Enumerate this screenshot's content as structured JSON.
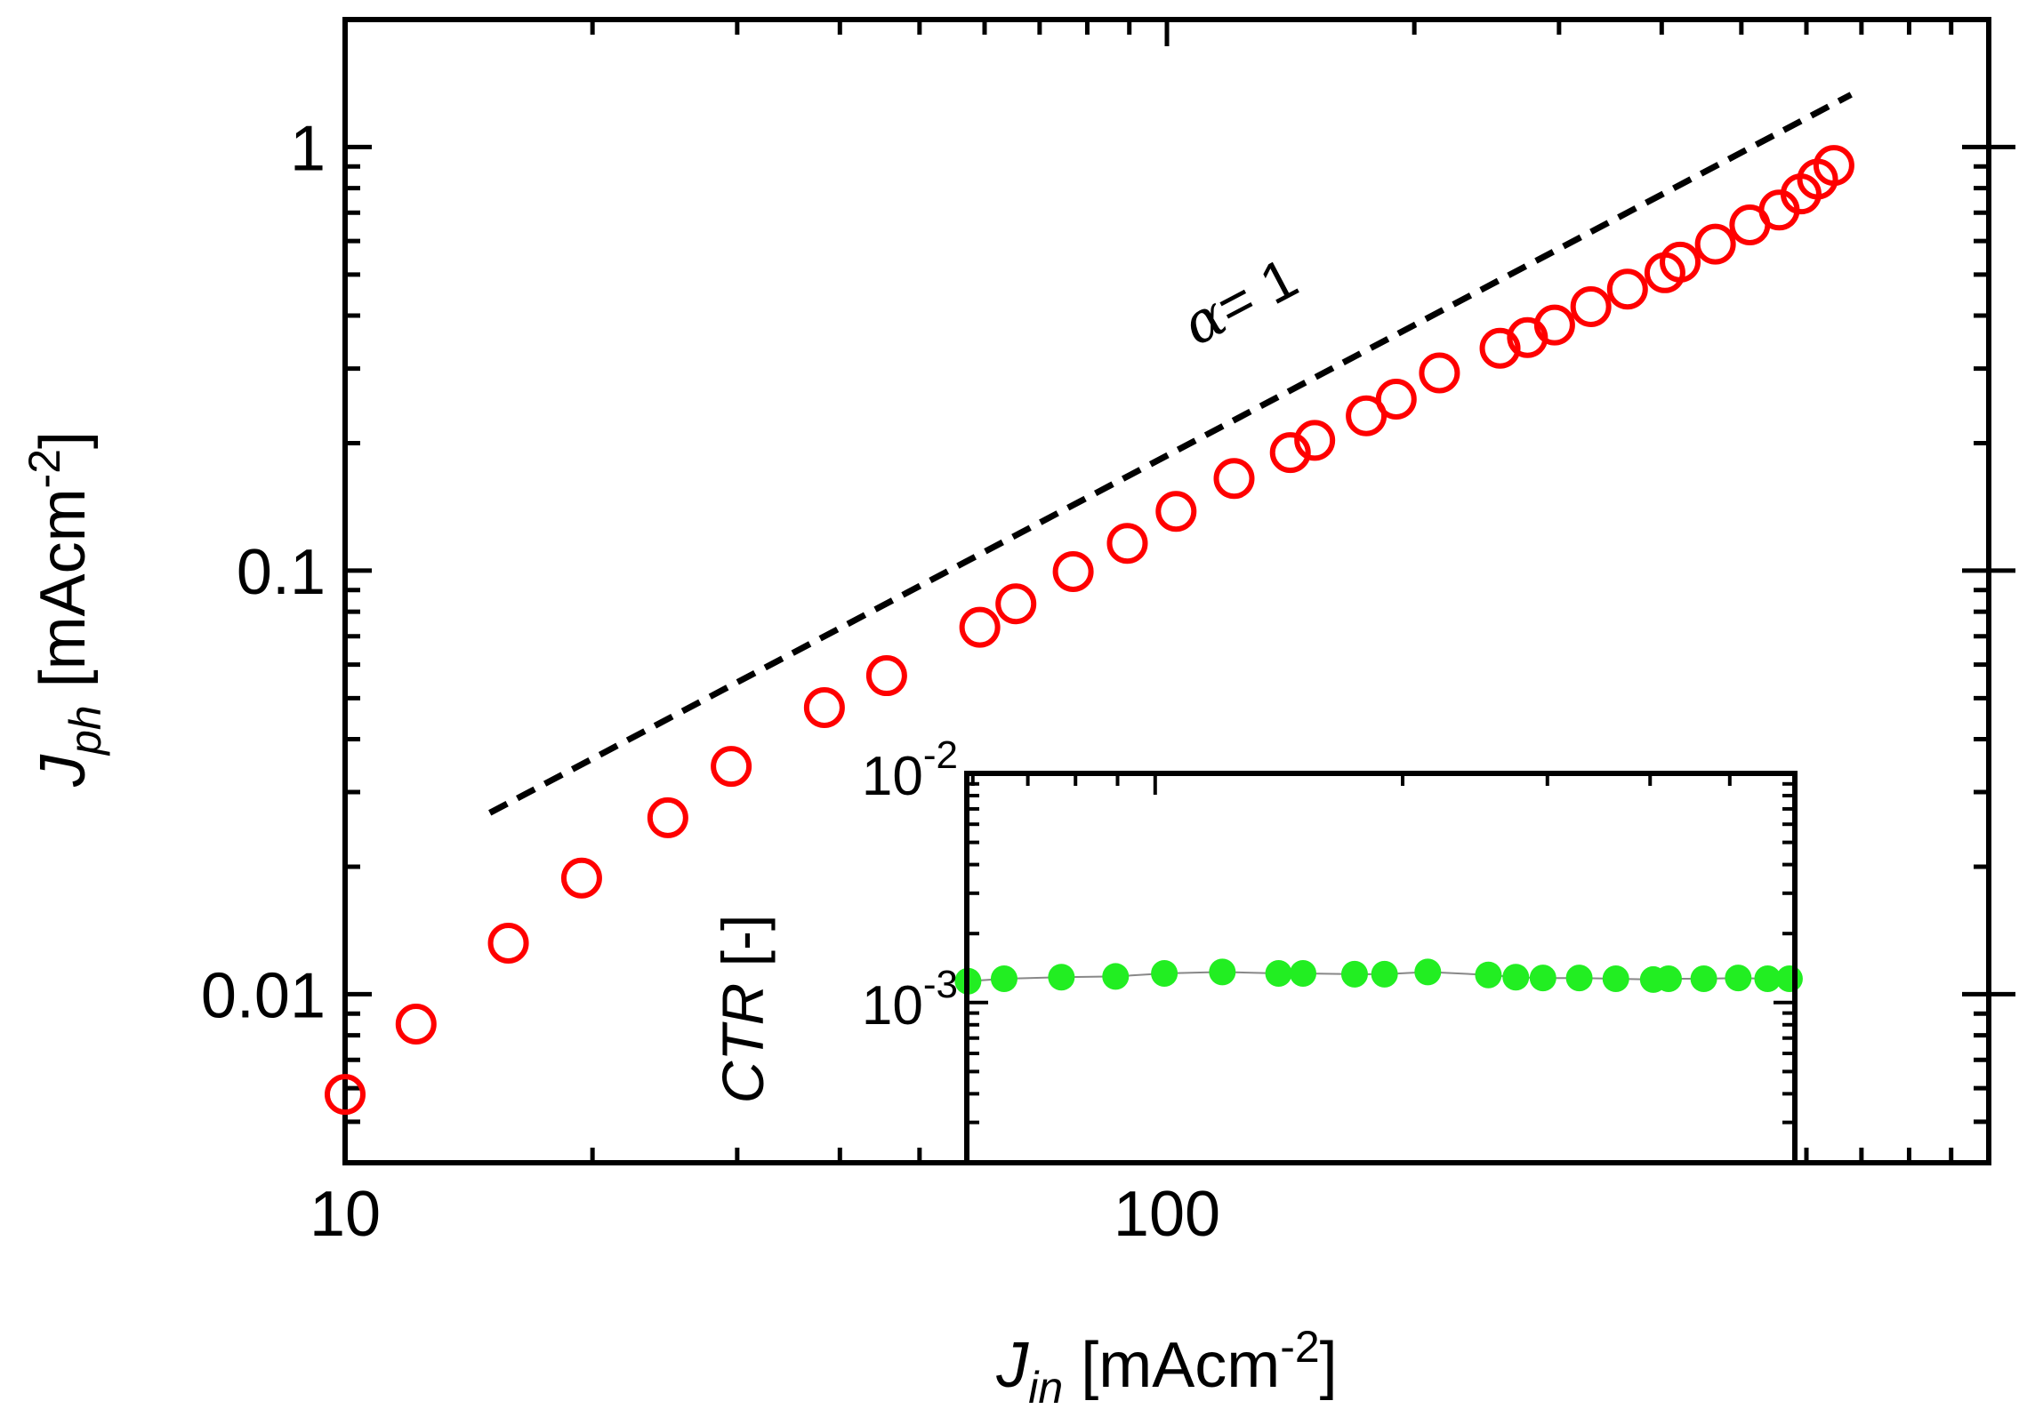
{
  "chart_data": [
    {
      "type": "scatter",
      "role": "main",
      "xscale": "log",
      "yscale": "log",
      "xlim": [
        10,
        1000
      ],
      "ylim": [
        0.004,
        2
      ],
      "x_ticks": [
        {
          "value": 10,
          "label": "10"
        },
        {
          "value": 100,
          "label": "100"
        }
      ],
      "y_ticks": [
        {
          "value": 0.01,
          "label": "0.01"
        },
        {
          "value": 0.1,
          "label": "0.1"
        },
        {
          "value": 1,
          "label": "1"
        }
      ],
      "xlabel": {
        "main": "J",
        "sub": "in",
        "unit": " [mAcm",
        "sup": "-2",
        "end": "]"
      },
      "ylabel": {
        "main": "J",
        "sub": "ph",
        "unit": " [mAcm",
        "sup": "-2",
        "end": "]"
      },
      "series": [
        {
          "name": "Jph",
          "marker": "open-circle",
          "color": "#ff0000",
          "x": [
            10,
            12.2,
            15.8,
            19.4,
            24.7,
            29.5,
            38.3,
            45.6,
            59.2,
            65.5,
            76.9,
            89.5,
            102.6,
            120.7,
            141.3,
            151.3,
            174.8,
            190.1,
            214.6,
            254.3,
            274.6,
            296.3,
            328,
            363.4,
            403.6,
            421.2,
            464.9,
            512,
            556,
            591,
            619,
            648
          ],
          "y": [
            0.0058,
            0.0085,
            0.0132,
            0.0188,
            0.0261,
            0.0345,
            0.0475,
            0.0565,
            0.0735,
            0.0835,
            0.0995,
            0.116,
            0.138,
            0.165,
            0.19,
            0.203,
            0.232,
            0.254,
            0.293,
            0.335,
            0.355,
            0.38,
            0.42,
            0.462,
            0.505,
            0.535,
            0.59,
            0.655,
            0.71,
            0.775,
            0.84,
            0.905
          ]
        }
      ],
      "reference_line": {
        "label_symbol": "α",
        "label_rest": "= 1",
        "style": "dashed",
        "color": "#000000",
        "x": [
          15,
          680
        ],
        "y": [
          0.0268,
          1.33
        ]
      }
    },
    {
      "type": "scatter",
      "role": "inset",
      "xscale": "log",
      "yscale": "log",
      "xlim": [
        59,
        600
      ],
      "ylim": [
        0.0002,
        0.01
      ],
      "y_ticks": [
        {
          "value": 0.01,
          "base": "10",
          "exp": "-2"
        },
        {
          "value": 0.001,
          "base": "10",
          "exp": "-3"
        }
      ],
      "ylabel": {
        "italic": "CTR",
        "rest": " [-]"
      },
      "series": [
        {
          "name": "CTR",
          "marker": "filled-circle",
          "color": "#22ee22",
          "connector": "#888888",
          "x": [
            59.2,
            65.5,
            76.9,
            89.5,
            102.6,
            120.7,
            141.3,
            151.3,
            174.8,
            190.1,
            214.6,
            254.3,
            274.6,
            296.3,
            328,
            363.4,
            403.6,
            421.2,
            464.9,
            512,
            556,
            591
          ],
          "y": [
            0.00124,
            0.00127,
            0.00129,
            0.0013,
            0.00134,
            0.00136,
            0.00134,
            0.00134,
            0.00133,
            0.00133,
            0.00136,
            0.00132,
            0.00129,
            0.00128,
            0.00128,
            0.00127,
            0.00126,
            0.00127,
            0.00127,
            0.00128,
            0.00127,
            0.00127
          ]
        }
      ]
    }
  ]
}
